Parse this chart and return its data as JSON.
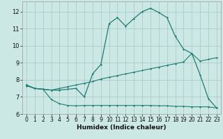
{
  "background_color": "#cce8e5",
  "grid_color": "#aaccca",
  "line_color": "#1e7b72",
  "xlabel": "Humidex (Indice chaleur)",
  "x_range": [
    -0.5,
    23.5
  ],
  "y_range": [
    6.0,
    12.6
  ],
  "yticks": [
    6,
    7,
    8,
    9,
    10,
    11,
    12
  ],
  "xticks": [
    0,
    1,
    2,
    3,
    4,
    5,
    6,
    7,
    8,
    9,
    10,
    11,
    12,
    13,
    14,
    15,
    16,
    17,
    18,
    19,
    20,
    21,
    22,
    23
  ],
  "curve_main_x": [
    0,
    1,
    2,
    3,
    4,
    5,
    6,
    7,
    8,
    9,
    10,
    11,
    12,
    13,
    14,
    15,
    16,
    17,
    18,
    19,
    20,
    21,
    22,
    23
  ],
  "curve_main_y": [
    7.7,
    7.5,
    7.45,
    7.4,
    7.4,
    7.45,
    7.5,
    7.0,
    8.35,
    8.9,
    11.3,
    11.65,
    11.15,
    11.6,
    12.0,
    12.2,
    11.95,
    11.65,
    10.55,
    9.8,
    9.55,
    8.3,
    6.9,
    6.35
  ],
  "curve_mid_x": [
    0,
    1,
    2,
    3,
    4,
    5,
    6,
    7,
    8,
    9,
    10,
    11,
    12,
    13,
    14,
    15,
    16,
    17,
    18,
    19,
    20,
    21,
    22,
    23
  ],
  "curve_mid_y": [
    7.7,
    7.5,
    7.45,
    7.4,
    7.5,
    7.6,
    7.7,
    7.8,
    7.9,
    8.05,
    8.15,
    8.25,
    8.35,
    8.45,
    8.55,
    8.65,
    8.75,
    8.85,
    8.95,
    9.05,
    9.55,
    9.1,
    9.2,
    9.3
  ],
  "curve_low_x": [
    0,
    1,
    2,
    3,
    4,
    5,
    6,
    7,
    8,
    9,
    10,
    11,
    12,
    13,
    14,
    15,
    16,
    17,
    18,
    19,
    20,
    21,
    22,
    23
  ],
  "curve_low_y": [
    7.65,
    7.5,
    7.45,
    6.85,
    6.6,
    6.5,
    6.48,
    6.5,
    6.5,
    6.5,
    6.5,
    6.5,
    6.5,
    6.5,
    6.5,
    6.5,
    6.48,
    6.48,
    6.45,
    6.45,
    6.42,
    6.42,
    6.42,
    6.35
  ]
}
